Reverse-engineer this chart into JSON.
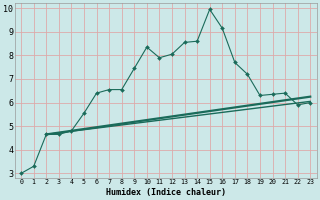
{
  "xlabel": "Humidex (Indice chaleur)",
  "bg_color": "#cce8e8",
  "grid_color": "#ddaaaa",
  "line_color": "#1a6b5a",
  "xlim": [
    -0.5,
    23.5
  ],
  "ylim": [
    2.8,
    10.2
  ],
  "xticks": [
    0,
    1,
    2,
    3,
    4,
    5,
    6,
    7,
    8,
    9,
    10,
    11,
    12,
    13,
    14,
    15,
    16,
    17,
    18,
    19,
    20,
    21,
    22,
    23
  ],
  "yticks": [
    3,
    4,
    5,
    6,
    7,
    8,
    9,
    10
  ],
  "curve1_x": [
    0,
    1,
    2,
    3,
    4,
    5,
    6,
    7,
    8,
    9,
    10,
    11,
    12,
    13,
    14,
    15,
    16,
    17,
    18,
    19,
    20,
    21,
    22,
    23
  ],
  "curve1_y": [
    3.0,
    3.3,
    4.65,
    4.65,
    4.8,
    5.55,
    6.4,
    6.55,
    6.55,
    7.45,
    8.35,
    7.9,
    8.05,
    8.55,
    8.6,
    9.95,
    9.15,
    7.7,
    7.2,
    6.3,
    6.35,
    6.4,
    5.9,
    6.0
  ],
  "trend1_x": [
    2,
    23
  ],
  "trend1_y": [
    4.65,
    6.05
  ],
  "trend2_x": [
    2,
    23
  ],
  "trend2_y": [
    4.65,
    6.25
  ],
  "xlabel_fontsize": 6.0,
  "tick_fontsize_x": 4.8,
  "tick_fontsize_y": 6.0
}
